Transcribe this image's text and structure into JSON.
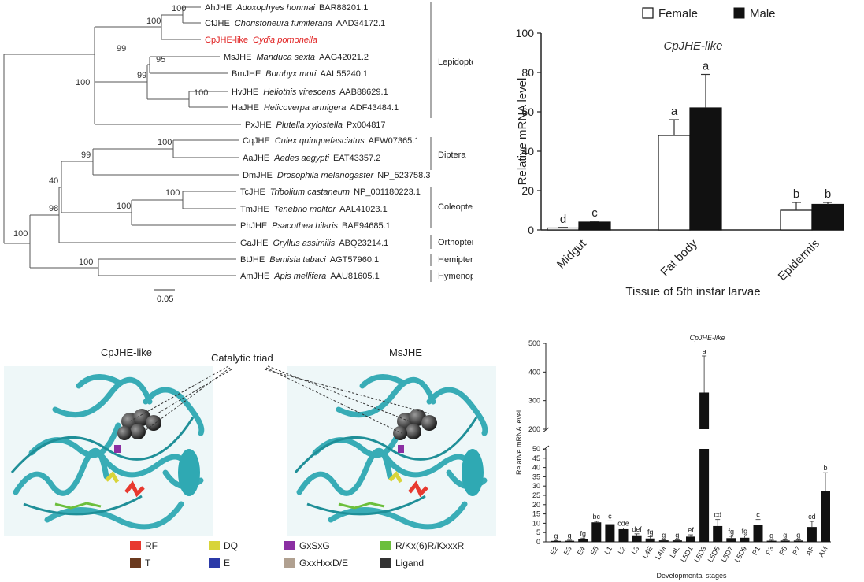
{
  "tree": {
    "taxa": [
      {
        "code": "AhJHE",
        "species": "Adoxophyes honmai",
        "acc": "BAR88201.1",
        "highlight": false
      },
      {
        "code": "CfJHE",
        "species": "Choristoneura fumiferana",
        "acc": "AAD34172.1",
        "highlight": false
      },
      {
        "code": "CpJHE-like",
        "species": "Cydia pomonella",
        "acc": "",
        "highlight": true
      },
      {
        "code": "MsJHE",
        "species": "Manduca sexta",
        "acc": "AAG42021.2",
        "highlight": false
      },
      {
        "code": "BmJHE",
        "species": "Bombyx mori",
        "acc": "AAL55240.1",
        "highlight": false
      },
      {
        "code": "HvJHE",
        "species": "Heliothis virescens",
        "acc": "AAB88629.1",
        "highlight": false
      },
      {
        "code": "HaJHE",
        "species": "Helicoverpa armigera",
        "acc": "ADF43484.1",
        "highlight": false
      },
      {
        "code": "PxJHE",
        "species": "Plutella xylostella",
        "acc": "Px004817",
        "highlight": false
      },
      {
        "code": "CqJHE",
        "species": "Culex quinquefasciatus",
        "acc": "AEW07365.1",
        "highlight": false
      },
      {
        "code": "AaJHE",
        "species": "Aedes aegypti",
        "acc": "EAT43357.2",
        "highlight": false
      },
      {
        "code": "DmJHE",
        "species": "Drosophila melanogaster",
        "acc": "NP_523758.3",
        "highlight": false
      },
      {
        "code": "TcJHE",
        "species": "Tribolium castaneum",
        "acc": "NP_001180223.1",
        "highlight": false
      },
      {
        "code": "TmJHE",
        "species": "Tenebrio molitor",
        "acc": "AAL41023.1",
        "highlight": false
      },
      {
        "code": "PhJHE",
        "species": "Psacothea hilaris",
        "acc": "BAE94685.1",
        "highlight": false
      },
      {
        "code": "GaJHE",
        "species": "Gryllus assimilis",
        "acc": "ABQ23214.1",
        "highlight": false
      },
      {
        "code": "BtJHE",
        "species": "Bemisia tabaci",
        "acc": "AGT57960.1",
        "highlight": false
      },
      {
        "code": "AmJHE",
        "species": "Apis mellifera",
        "acc": "AAU81605.1",
        "highlight": false
      }
    ],
    "bootstrap": [
      "100",
      "100",
      "99",
      "95",
      "99",
      "100",
      "100",
      "100",
      "99",
      "40",
      "100",
      "100",
      "98",
      "100",
      "100"
    ],
    "orders": [
      "Lepidoptera",
      "Diptera",
      "Coleoptera",
      "Orthoptera",
      "Hemiptera",
      "Hymenoptera"
    ],
    "scale": "0.05"
  },
  "chart_data": [
    {
      "type": "bar",
      "title": "CpJHE-like",
      "xlabel": "Tissue of 5th instar larvae",
      "ylabel": "Relative mRNA level",
      "ylim": [
        0,
        100
      ],
      "yticks": [
        "0",
        "20",
        "40",
        "60",
        "80",
        "100"
      ],
      "categories": [
        "Midgut",
        "Fat body",
        "Epidermis"
      ],
      "series": [
        {
          "name": "Female",
          "values": [
            1,
            48,
            10
          ],
          "errors": [
            0.3,
            8,
            4
          ],
          "letters": [
            "d",
            "a",
            "b"
          ],
          "color": "#ffffff"
        },
        {
          "name": "Male",
          "values": [
            4,
            62,
            13
          ],
          "errors": [
            0.5,
            17,
            1
          ],
          "letters": [
            "c",
            "a",
            "b"
          ],
          "color": "#111111"
        }
      ],
      "legend": "top"
    },
    {
      "type": "bar",
      "title": "CpJHE-like",
      "xlabel": "Developmental stages",
      "ylabel": "Relative mRNA level",
      "axis_break": [
        50,
        200
      ],
      "yticks_lower": [
        "0",
        "5",
        "10",
        "15",
        "20",
        "25",
        "30",
        "35",
        "40",
        "45",
        "50"
      ],
      "yticks_upper": [
        "200",
        "300",
        "400",
        "500"
      ],
      "categories": [
        "E2",
        "E3",
        "E4",
        "E5",
        "L1",
        "L2",
        "L3",
        "L4E",
        "L4M",
        "L4L",
        "L5D1",
        "L5D3",
        "L5D5",
        "L5D7",
        "L5D9",
        "P1",
        "P3",
        "P5",
        "P7",
        "AF",
        "AM"
      ],
      "values": [
        0.5,
        0.6,
        1.5,
        10.5,
        9.5,
        6.8,
        3.5,
        1.8,
        0.8,
        0.8,
        2.8,
        328,
        8.5,
        2.0,
        2.2,
        9.2,
        0.6,
        0.7,
        0.7,
        8.0,
        27.2
      ],
      "errors": [
        0.2,
        0.3,
        0.5,
        0.5,
        1.8,
        0.6,
        0.8,
        1.0,
        0.3,
        0.3,
        1.0,
        128,
        3.5,
        1.0,
        1.0,
        2.8,
        0.3,
        0.4,
        0.4,
        3.0,
        10.0
      ],
      "letters": [
        "g",
        "g",
        "fg",
        "bc",
        "c",
        "cde",
        "def",
        "fg",
        "g",
        "g",
        "ef",
        "a",
        "cd",
        "fg",
        "fg",
        "c",
        "g",
        "g",
        "g",
        "cd",
        "b"
      ]
    }
  ],
  "structures": {
    "left_title": "CpJHE-like",
    "right_title": "MsJHE",
    "callout": "Catalytic triad",
    "legend": [
      {
        "label": "RF",
        "color": "#e8392f"
      },
      {
        "label": "DQ",
        "color": "#d8d43a"
      },
      {
        "label": "GxSxG",
        "color": "#8b2fa3"
      },
      {
        "label": "R/Kx(6)R/KxxxR",
        "color": "#6cbf3c"
      },
      {
        "label": "T",
        "color": "#6b3a1f"
      },
      {
        "label": "E",
        "color": "#2b3aa8"
      },
      {
        "label": "GxxHxxD/E",
        "color": "#b0a090"
      },
      {
        "label": "Ligand",
        "color": "#333333"
      }
    ]
  }
}
